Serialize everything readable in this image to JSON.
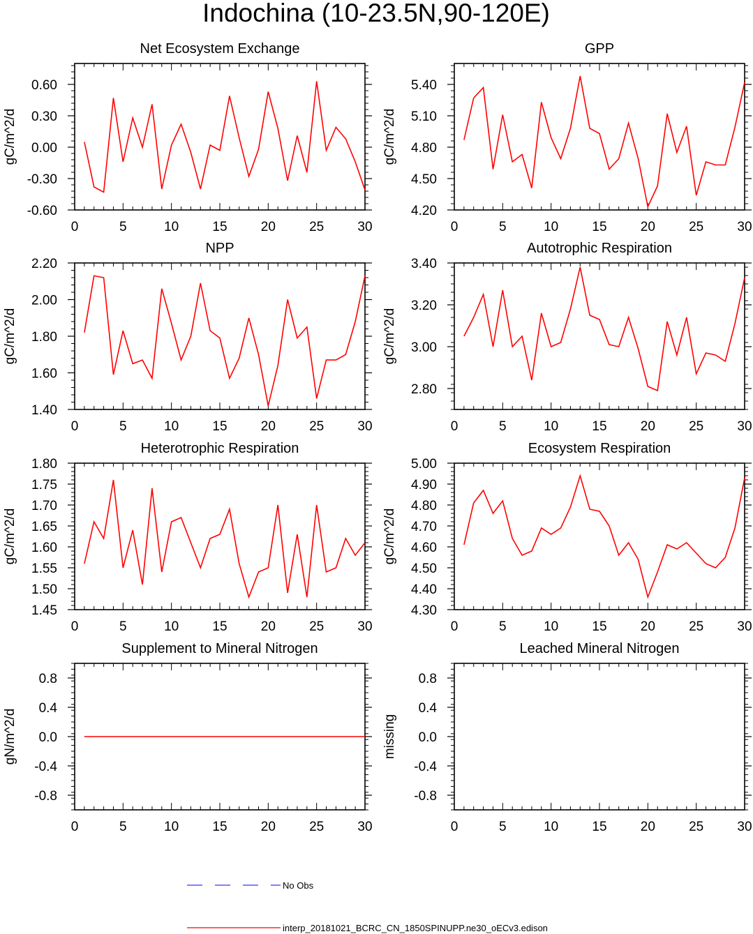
{
  "figure_title": "Indochina (10-23.5N,90-120E)",
  "colors": {
    "model": "#ff0000",
    "obs": "#0000ff",
    "axis": "#000000"
  },
  "legend": {
    "obs_label": "No Obs",
    "model_label": "interp_20181021_BCRC_CN_1850SPINUPP.ne30_oECv3.edison"
  },
  "chart_data": [
    {
      "type": "line",
      "title": "Net Ecosystem Exchange",
      "ylabel": "gC/m^2/d",
      "xlim": [
        0,
        30
      ],
      "ylim": [
        -0.6,
        0.8
      ],
      "yticks": [
        -0.6,
        -0.3,
        0.0,
        0.3,
        0.6
      ],
      "ytick_labels": [
        "-0.60",
        "-0.30",
        "0.00",
        "0.30",
        "0.60"
      ],
      "xticks": [
        0,
        5,
        10,
        15,
        20,
        25,
        30
      ],
      "xtick_labels": [
        "0",
        "5",
        "10",
        "15",
        "20",
        "25",
        "30"
      ],
      "x": [
        1,
        2,
        3,
        4,
        5,
        6,
        7,
        8,
        9,
        10,
        11,
        12,
        13,
        14,
        15,
        16,
        17,
        18,
        19,
        20,
        21,
        22,
        23,
        24,
        25,
        26,
        27,
        28,
        29,
        30
      ],
      "series": [
        {
          "name": "interp_20181021_BCRC_CN_1850SPINUPP.ne30_oECv3.edison",
          "values": [
            0.05,
            -0.38,
            -0.43,
            0.47,
            -0.14,
            0.28,
            0.0,
            0.41,
            -0.4,
            0.02,
            0.22,
            -0.05,
            -0.4,
            0.02,
            -0.03,
            0.49,
            0.09,
            -0.28,
            -0.02,
            0.53,
            0.18,
            -0.32,
            0.11,
            -0.24,
            0.63,
            -0.03,
            0.19,
            0.08,
            -0.14,
            -0.41
          ]
        }
      ]
    },
    {
      "type": "line",
      "title": "GPP",
      "ylabel": "gC/m^2/d",
      "xlim": [
        0,
        30
      ],
      "ylim": [
        4.2,
        5.6
      ],
      "yticks": [
        4.2,
        4.5,
        4.8,
        5.1,
        5.4
      ],
      "ytick_labels": [
        "4.20",
        "4.50",
        "4.80",
        "5.10",
        "5.40"
      ],
      "xticks": [
        0,
        5,
        10,
        15,
        20,
        25,
        30
      ],
      "xtick_labels": [
        "0",
        "5",
        "10",
        "15",
        "20",
        "25",
        "30"
      ],
      "x": [
        1,
        2,
        3,
        4,
        5,
        6,
        7,
        8,
        9,
        10,
        11,
        12,
        13,
        14,
        15,
        16,
        17,
        18,
        19,
        20,
        21,
        22,
        23,
        24,
        25,
        26,
        27,
        28,
        29,
        30
      ],
      "series": [
        {
          "name": "interp_20181021_BCRC_CN_1850SPINUPP.ne30_oECv3.edison",
          "values": [
            4.87,
            5.27,
            5.37,
            4.59,
            5.11,
            4.66,
            4.73,
            4.41,
            5.23,
            4.89,
            4.69,
            4.98,
            5.48,
            4.98,
            4.93,
            4.59,
            4.69,
            5.03,
            4.69,
            4.23,
            4.43,
            5.12,
            4.75,
            5.0,
            4.34,
            4.66,
            4.63,
            4.63,
            4.99,
            5.42
          ]
        }
      ]
    },
    {
      "type": "line",
      "title": "NPP",
      "ylabel": "gC/m^2/d",
      "xlim": [
        0,
        30
      ],
      "ylim": [
        1.4,
        2.2
      ],
      "yticks": [
        1.4,
        1.6,
        1.8,
        2.0,
        2.2
      ],
      "ytick_labels": [
        "1.40",
        "1.60",
        "1.80",
        "2.00",
        "2.20"
      ],
      "xticks": [
        0,
        5,
        10,
        15,
        20,
        25,
        30
      ],
      "xtick_labels": [
        "0",
        "5",
        "10",
        "15",
        "20",
        "25",
        "30"
      ],
      "x": [
        1,
        2,
        3,
        4,
        5,
        6,
        7,
        8,
        9,
        10,
        11,
        12,
        13,
        14,
        15,
        16,
        17,
        18,
        19,
        20,
        21,
        22,
        23,
        24,
        25,
        26,
        27,
        28,
        29,
        30
      ],
      "series": [
        {
          "name": "interp_20181021_BCRC_CN_1850SPINUPP.ne30_oECv3.edison",
          "values": [
            1.82,
            2.13,
            2.12,
            1.59,
            1.83,
            1.65,
            1.67,
            1.57,
            2.06,
            1.87,
            1.67,
            1.8,
            2.09,
            1.83,
            1.79,
            1.57,
            1.68,
            1.9,
            1.7,
            1.42,
            1.64,
            2.0,
            1.79,
            1.85,
            1.46,
            1.67,
            1.67,
            1.7,
            1.88,
            2.13
          ]
        }
      ]
    },
    {
      "type": "line",
      "title": "Autotrophic Respiration",
      "ylabel": "gC/m^2/d",
      "xlim": [
        0,
        30
      ],
      "ylim": [
        2.7,
        3.4
      ],
      "yticks": [
        2.8,
        3.0,
        3.2,
        3.4
      ],
      "ytick_labels": [
        "2.80",
        "3.00",
        "3.20",
        "3.40"
      ],
      "xticks": [
        0,
        5,
        10,
        15,
        20,
        25,
        30
      ],
      "xtick_labels": [
        "0",
        "5",
        "10",
        "15",
        "20",
        "25",
        "30"
      ],
      "x": [
        1,
        2,
        3,
        4,
        5,
        6,
        7,
        8,
        9,
        10,
        11,
        12,
        13,
        14,
        15,
        16,
        17,
        18,
        19,
        20,
        21,
        22,
        23,
        24,
        25,
        26,
        27,
        28,
        29,
        30
      ],
      "series": [
        {
          "name": "interp_20181021_BCRC_CN_1850SPINUPP.ne30_oECv3.edison",
          "values": [
            3.05,
            3.14,
            3.25,
            3.0,
            3.27,
            3.0,
            3.05,
            2.84,
            3.16,
            3.0,
            3.02,
            3.18,
            3.38,
            3.15,
            3.13,
            3.01,
            3.0,
            3.14,
            2.99,
            2.81,
            2.79,
            3.12,
            2.96,
            3.14,
            2.87,
            2.97,
            2.96,
            2.93,
            3.11,
            3.33
          ]
        }
      ]
    },
    {
      "type": "line",
      "title": "Heterotrophic Respiration",
      "ylabel": "gC/m^2/d",
      "xlim": [
        0,
        30
      ],
      "ylim": [
        1.45,
        1.8
      ],
      "yticks": [
        1.45,
        1.5,
        1.55,
        1.6,
        1.65,
        1.7,
        1.75,
        1.8
      ],
      "ytick_labels": [
        "1.45",
        "1.50",
        "1.55",
        "1.60",
        "1.65",
        "1.70",
        "1.75",
        "1.80"
      ],
      "xticks": [
        0,
        5,
        10,
        15,
        20,
        25,
        30
      ],
      "xtick_labels": [
        "0",
        "5",
        "10",
        "15",
        "20",
        "25",
        "30"
      ],
      "x": [
        1,
        2,
        3,
        4,
        5,
        6,
        7,
        8,
        9,
        10,
        11,
        12,
        13,
        14,
        15,
        16,
        17,
        18,
        19,
        20,
        21,
        22,
        23,
        24,
        25,
        26,
        27,
        28,
        29,
        30
      ],
      "series": [
        {
          "name": "interp_20181021_BCRC_CN_1850SPINUPP.ne30_oECv3.edison",
          "values": [
            1.56,
            1.66,
            1.62,
            1.76,
            1.55,
            1.64,
            1.51,
            1.74,
            1.54,
            1.66,
            1.67,
            1.61,
            1.55,
            1.62,
            1.63,
            1.69,
            1.56,
            1.48,
            1.54,
            1.55,
            1.7,
            1.49,
            1.63,
            1.48,
            1.7,
            1.54,
            1.55,
            1.62,
            1.58,
            1.61
          ]
        }
      ]
    },
    {
      "type": "line",
      "title": "Ecosystem Respiration",
      "ylabel": "gC/m^2/d",
      "xlim": [
        0,
        30
      ],
      "ylim": [
        4.3,
        5.0
      ],
      "yticks": [
        4.3,
        4.4,
        4.5,
        4.6,
        4.7,
        4.8,
        4.9,
        5.0
      ],
      "ytick_labels": [
        "4.30",
        "4.40",
        "4.50",
        "4.60",
        "4.70",
        "4.80",
        "4.90",
        "5.00"
      ],
      "xticks": [
        0,
        5,
        10,
        15,
        20,
        25,
        30
      ],
      "xtick_labels": [
        "0",
        "5",
        "10",
        "15",
        "20",
        "25",
        "30"
      ],
      "x": [
        1,
        2,
        3,
        4,
        5,
        6,
        7,
        8,
        9,
        10,
        11,
        12,
        13,
        14,
        15,
        16,
        17,
        18,
        19,
        20,
        21,
        22,
        23,
        24,
        25,
        26,
        27,
        28,
        29,
        30
      ],
      "series": [
        {
          "name": "interp_20181021_BCRC_CN_1850SPINUPP.ne30_oECv3.edison",
          "values": [
            4.61,
            4.81,
            4.87,
            4.76,
            4.82,
            4.64,
            4.56,
            4.58,
            4.69,
            4.66,
            4.69,
            4.79,
            4.94,
            4.78,
            4.77,
            4.7,
            4.56,
            4.62,
            4.54,
            4.36,
            4.48,
            4.61,
            4.59,
            4.62,
            4.57,
            4.52,
            4.5,
            4.55,
            4.69,
            4.93
          ]
        }
      ]
    },
    {
      "type": "line",
      "title": "Supplement to Mineral Nitrogen",
      "ylabel": "gN/m^2/d",
      "xlim": [
        0,
        30
      ],
      "ylim": [
        -1.0,
        1.0
      ],
      "yticks": [
        -0.8,
        -0.4,
        0.0,
        0.4,
        0.8
      ],
      "ytick_labels": [
        "-0.8",
        "-0.4",
        "0.0",
        "0.4",
        "0.8"
      ],
      "xticks": [
        0,
        5,
        10,
        15,
        20,
        25,
        30
      ],
      "xtick_labels": [
        "0",
        "5",
        "10",
        "15",
        "20",
        "25",
        "30"
      ],
      "x": [
        1,
        2,
        3,
        4,
        5,
        6,
        7,
        8,
        9,
        10,
        11,
        12,
        13,
        14,
        15,
        16,
        17,
        18,
        19,
        20,
        21,
        22,
        23,
        24,
        25,
        26,
        27,
        28,
        29,
        30
      ],
      "series": [
        {
          "name": "interp_20181021_BCRC_CN_1850SPINUPP.ne30_oECv3.edison",
          "values": [
            0,
            0,
            0,
            0,
            0,
            0,
            0,
            0,
            0,
            0,
            0,
            0,
            0,
            0,
            0,
            0,
            0,
            0,
            0,
            0,
            0,
            0,
            0,
            0,
            0,
            0,
            0,
            0,
            0,
            0
          ]
        }
      ]
    },
    {
      "type": "line",
      "title": "Leached Mineral Nitrogen",
      "ylabel": "missing",
      "xlim": [
        0,
        30
      ],
      "ylim": [
        -1.0,
        1.0
      ],
      "yticks": [
        -0.8,
        -0.4,
        0.0,
        0.4,
        0.8
      ],
      "ytick_labels": [
        "-0.8",
        "-0.4",
        "0.0",
        "0.4",
        "0.8"
      ],
      "xticks": [
        0,
        5,
        10,
        15,
        20,
        25,
        30
      ],
      "xtick_labels": [
        "0",
        "5",
        "10",
        "15",
        "20",
        "25",
        "30"
      ],
      "x": [],
      "series": []
    }
  ]
}
